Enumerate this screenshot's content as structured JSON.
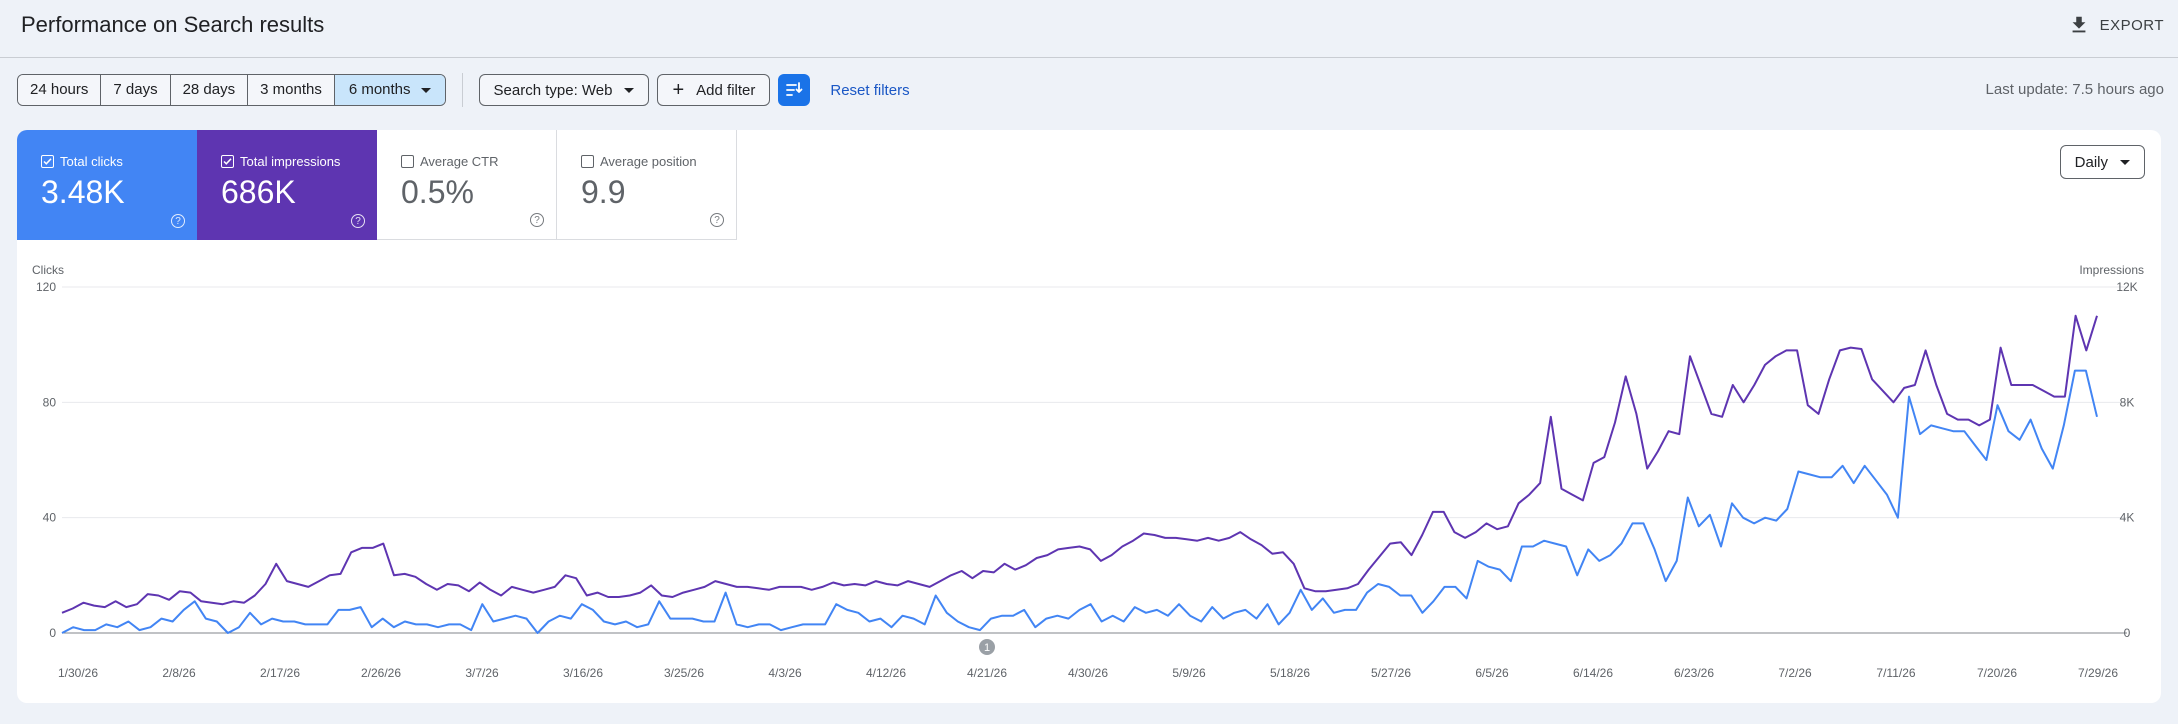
{
  "header": {
    "title": "Performance on Search results",
    "export_label": "EXPORT",
    "export_icon": "download-icon"
  },
  "filters": {
    "ranges": [
      "24 hours",
      "7 days",
      "28 days",
      "3 months",
      "6 months"
    ],
    "selected_range": "6 months",
    "search_type": "Search type: Web",
    "add_filter": "Add filter",
    "reset": "Reset filters",
    "last_update": "Last update: 7.5 hours ago"
  },
  "metrics": [
    {
      "label": "Total clicks",
      "value": "3.48K",
      "checked": true,
      "color": "#4285f4"
    },
    {
      "label": "Total impressions",
      "value": "686K",
      "checked": true,
      "color": "#5e35b1"
    },
    {
      "label": "Average CTR",
      "value": "0.5%",
      "checked": false,
      "color": "#ffffff"
    },
    {
      "label": "Average position",
      "value": "9.9",
      "checked": false,
      "color": "#ffffff"
    }
  ],
  "granularity": "Daily",
  "annotation": {
    "label": "1"
  },
  "chart_data": {
    "type": "line",
    "y_left": {
      "label": "Clicks",
      "ticks": [
        "0",
        "40",
        "80",
        "120"
      ],
      "range": [
        0,
        120
      ]
    },
    "y_right": {
      "label": "Impressions",
      "ticks": [
        "0",
        "4K",
        "8K",
        "12K"
      ],
      "range": [
        0,
        12000
      ]
    },
    "x_tick_labels": [
      "1/30/26",
      "2/8/26",
      "2/17/26",
      "2/26/26",
      "3/7/26",
      "3/16/26",
      "3/25/26",
      "4/3/26",
      "4/12/26",
      "4/21/26",
      "4/30/26",
      "5/9/26",
      "5/18/26",
      "5/27/26",
      "6/5/26",
      "6/14/26",
      "6/23/26",
      "7/2/26",
      "7/11/26",
      "7/20/26",
      "7/29/26"
    ],
    "grid": true,
    "series": [
      {
        "name": "Total clicks",
        "axis": "left",
        "color": "#4285f4",
        "values": [
          0,
          2,
          1,
          1,
          3,
          2,
          4,
          1,
          2,
          5,
          4,
          8,
          11,
          5,
          4,
          0,
          2,
          7,
          3,
          5,
          4,
          4,
          3,
          3,
          3,
          8,
          8,
          9,
          2,
          5,
          2,
          4,
          3,
          3,
          2,
          3,
          3,
          1,
          10,
          4,
          5,
          6,
          5,
          0,
          4,
          6,
          5,
          10,
          8,
          4,
          3,
          4,
          2,
          3,
          11,
          5,
          5,
          5,
          4,
          4,
          14,
          3,
          2,
          3,
          3,
          1,
          2,
          3,
          3,
          3,
          10,
          8,
          7,
          4,
          5,
          2,
          6,
          5,
          3,
          13,
          7,
          4,
          2,
          1,
          5,
          6,
          6,
          8,
          2,
          5,
          6,
          5,
          8,
          10,
          4,
          6,
          4,
          9,
          7,
          8,
          6,
          10,
          6,
          4,
          9,
          5,
          7,
          8,
          5,
          10,
          3,
          7,
          15,
          8,
          12,
          7,
          8,
          8,
          14,
          17,
          16,
          13,
          13,
          7,
          11,
          16,
          16,
          12,
          25,
          23,
          22,
          18,
          30,
          30,
          32,
          31,
          30,
          20,
          29,
          25,
          27,
          31,
          38,
          38,
          29,
          18,
          25,
          47,
          37,
          41,
          30,
          45,
          40,
          38,
          40,
          39,
          43,
          56,
          55,
          54,
          54,
          58,
          52,
          58,
          53,
          48,
          40,
          82,
          69,
          72,
          71,
          70,
          70,
          65,
          60,
          79,
          70,
          67,
          74,
          64,
          57,
          72,
          91,
          91,
          75
        ]
      },
      {
        "name": "Total impressions",
        "axis": "right",
        "color": "#5e35b1",
        "values": [
          700,
          850,
          1050,
          950,
          900,
          1100,
          900,
          1000,
          1350,
          1300,
          1150,
          1450,
          1400,
          1100,
          1050,
          1000,
          1100,
          1050,
          1300,
          1700,
          2400,
          1800,
          1700,
          1600,
          1800,
          2000,
          2050,
          2800,
          2950,
          2950,
          3100,
          2000,
          2050,
          1950,
          1700,
          1500,
          1700,
          1650,
          1450,
          1750,
          1500,
          1300,
          1600,
          1500,
          1400,
          1500,
          1600,
          2000,
          1900,
          1300,
          1400,
          1250,
          1250,
          1300,
          1400,
          1650,
          1300,
          1250,
          1400,
          1500,
          1600,
          1800,
          1700,
          1600,
          1600,
          1550,
          1500,
          1600,
          1600,
          1600,
          1500,
          1600,
          1750,
          1650,
          1700,
          1650,
          1800,
          1700,
          1650,
          1800,
          1700,
          1600,
          1800,
          2000,
          2150,
          1900,
          2150,
          2100,
          2400,
          2200,
          2350,
          2600,
          2700,
          2900,
          2950,
          3000,
          2900,
          2500,
          2700,
          3000,
          3200,
          3450,
          3400,
          3300,
          3300,
          3250,
          3200,
          3300,
          3200,
          3300,
          3500,
          3250,
          3050,
          2750,
          2800,
          2400,
          1550,
          1450,
          1450,
          1500,
          1550,
          1700,
          2200,
          2650,
          3100,
          3150,
          2700,
          3400,
          4200,
          4200,
          3500,
          3300,
          3500,
          3800,
          3600,
          3700,
          4500,
          4800,
          5200,
          7500,
          5000,
          4800,
          4600,
          5900,
          6100,
          7300,
          8900,
          7600,
          5700,
          6300,
          7000,
          6900,
          9600,
          8600,
          7600,
          7500,
          8600,
          8000,
          8600,
          9300,
          9600,
          9800,
          9800,
          7900,
          7600,
          8800,
          9800,
          9900,
          9850,
          8800,
          8400,
          8000,
          8500,
          8600,
          9800,
          8600,
          7600,
          7400,
          7400,
          7200,
          7400,
          9900,
          8600,
          8600,
          8600,
          8400,
          8200,
          8200,
          11000,
          9800,
          11000
        ]
      }
    ]
  }
}
